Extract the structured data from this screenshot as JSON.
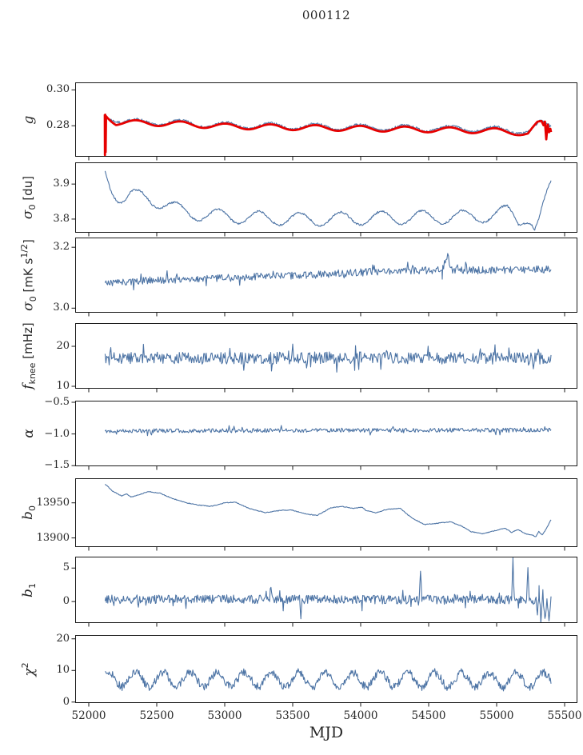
{
  "title": "000112",
  "colors": {
    "line_blue": "#4d74a5",
    "line_red": "#e60000",
    "axis": "#1a1a1a",
    "text": "#262626",
    "background": "#ffffff"
  },
  "chart_data": {
    "type": "line",
    "title": "000112",
    "xlabel": "MJD",
    "legend": "none",
    "grid": false,
    "xlim": [
      51900,
      55594
    ],
    "xticks": [
      {
        "v": 52000,
        "label": "52000"
      },
      {
        "v": 52500,
        "label": "52500"
      },
      {
        "v": 53000,
        "label": "53000"
      },
      {
        "v": 53500,
        "label": "53500"
      },
      {
        "v": 54000,
        "label": "54000"
      },
      {
        "v": 54500,
        "label": "54500"
      },
      {
        "v": 55000,
        "label": "55000"
      },
      {
        "v": 55500,
        "label": "55500"
      }
    ],
    "panels": [
      {
        "id": "g",
        "ylabel_parts": [
          {
            "t": "g",
            "i": 1
          }
        ],
        "ylim": [
          0.2627,
          0.3042
        ],
        "yticks": [
          {
            "v": 0.3,
            "label": "0.30"
          },
          {
            "v": 0.28,
            "label": "0.28"
          }
        ],
        "series": [
          {
            "name": "gain-raw",
            "color": "blue",
            "width": 1.1,
            "step": 5,
            "seed": 7,
            "noise": 0.00065,
            "osc": {
              "period": 330,
              "amp": 0.0016,
              "phase": 3.5
            },
            "points": [
              [
                52120,
                0.2862
              ],
              [
                52250,
                0.2822
              ],
              [
                52600,
                0.2818
              ],
              [
                53000,
                0.2802
              ],
              [
                53400,
                0.2798
              ],
              [
                53800,
                0.2794
              ],
              [
                54200,
                0.2789
              ],
              [
                54600,
                0.2785
              ],
              [
                55000,
                0.2779
              ],
              [
                55150,
                0.2773
              ],
              [
                55250,
                0.277
              ],
              [
                55330,
                0.2818
              ],
              [
                55400,
                0.2792
              ]
            ]
          },
          {
            "name": "gain-smoothed",
            "color": "red",
            "width": 2.8,
            "step": 8,
            "seed": 1,
            "noise": 0,
            "osc": {
              "period": 330,
              "amp": 0.0015,
              "phase": 3.5
            },
            "points": [
              [
                52118,
                0.2868
              ],
              [
                52119,
                0.2642
              ],
              [
                52121,
                0.2868
              ],
              [
                52124,
                0.266
              ],
              [
                52127,
                0.286
              ],
              [
                52200,
                0.2818
              ],
              [
                52600,
                0.2812
              ],
              [
                53000,
                0.2797
              ],
              [
                53400,
                0.2792
              ],
              [
                53800,
                0.2787
              ],
              [
                54200,
                0.2782
              ],
              [
                54600,
                0.2777
              ],
              [
                55000,
                0.2771
              ],
              [
                55150,
                0.2763
              ],
              [
                55230,
                0.2758
              ],
              [
                55300,
                0.2808
              ],
              [
                55330,
                0.2812
              ],
              [
                55345,
                0.279
              ],
              [
                55355,
                0.2812
              ],
              [
                55365,
                0.2715
              ],
              [
                55375,
                0.28
              ],
              [
                55385,
                0.276
              ],
              [
                55395,
                0.2782
              ],
              [
                55400,
                0.2765
              ]
            ]
          }
        ]
      },
      {
        "id": "sigma0-du",
        "ylabel_parts": [
          {
            "t": "σ",
            "i": 1
          },
          {
            "t": "0",
            "sub": 1
          },
          {
            "t": " [du]",
            "u": 1
          }
        ],
        "ylim": [
          3.761,
          3.962
        ],
        "yticks": [
          {
            "v": 3.9,
            "label": "3.9"
          },
          {
            "v": 3.8,
            "label": "3.8"
          }
        ],
        "series": [
          {
            "name": "sigma0-du",
            "color": "blue",
            "width": 1.1,
            "step": 5,
            "seed": 21,
            "noise": 0.0028,
            "osc": {
              "period": 300,
              "amp": 0.019,
              "phase": 3.0
            },
            "points": [
              [
                52120,
                3.935
              ],
              [
                52160,
                3.895
              ],
              [
                52210,
                3.868
              ],
              [
                52260,
                3.856
              ],
              [
                52310,
                3.866
              ],
              [
                52400,
                3.864
              ],
              [
                52550,
                3.845
              ],
              [
                52700,
                3.82
              ],
              [
                52900,
                3.81
              ],
              [
                53200,
                3.804
              ],
              [
                53600,
                3.799
              ],
              [
                54000,
                3.802
              ],
              [
                54400,
                3.805
              ],
              [
                54800,
                3.806
              ],
              [
                55000,
                3.812
              ],
              [
                55080,
                3.822
              ],
              [
                55120,
                3.812
              ],
              [
                55160,
                3.796
              ],
              [
                55210,
                3.808
              ],
              [
                55250,
                3.798
              ],
              [
                55280,
                3.768
              ],
              [
                55310,
                3.79
              ],
              [
                55350,
                3.84
              ],
              [
                55400,
                3.9
              ]
            ]
          }
        ]
      },
      {
        "id": "sigma0-mK",
        "ylabel_parts": [
          {
            "t": "σ",
            "i": 1
          },
          {
            "t": "0",
            "sub": 1
          },
          {
            "t": " [mK s",
            "u": 1
          },
          {
            "t": "1/2",
            "sup": 1
          },
          {
            "t": "]",
            "u": 1
          }
        ],
        "ylim": [
          2.985,
          3.232
        ],
        "yticks": [
          {
            "v": 3.2,
            "label": "3.2"
          },
          {
            "v": 3.0,
            "label": "3.0"
          }
        ],
        "series": [
          {
            "name": "sigma0-mK",
            "color": "blue",
            "width": 1.1,
            "step": 6,
            "seed": 33,
            "noise": 0.012,
            "spiky": 1,
            "points": [
              [
                52120,
                3.082
              ],
              [
                52400,
                3.09
              ],
              [
                52800,
                3.096
              ],
              [
                53200,
                3.102
              ],
              [
                53600,
                3.108
              ],
              [
                54000,
                3.118
              ],
              [
                54300,
                3.122
              ],
              [
                54600,
                3.126
              ],
              [
                54640,
                3.18
              ],
              [
                54660,
                3.126
              ],
              [
                54900,
                3.124
              ],
              [
                55200,
                3.126
              ],
              [
                55400,
                3.128
              ]
            ]
          }
        ]
      },
      {
        "id": "fknee",
        "ylabel_parts": [
          {
            "t": "f",
            "i": 1
          },
          {
            "t": "knee",
            "sub": 1
          },
          {
            "t": " [mHz]",
            "u": 1
          }
        ],
        "ylim": [
          9.4,
          25.8
        ],
        "yticks": [
          {
            "v": 20,
            "label": "20"
          },
          {
            "v": 10,
            "label": "10"
          }
        ],
        "series": [
          {
            "name": "fknee",
            "color": "blue",
            "width": 1.1,
            "step": 6,
            "seed": 44,
            "noise": 1.5,
            "spiky": 1,
            "points": [
              [
                52120,
                17.1
              ],
              [
                53000,
                17.0
              ],
              [
                54000,
                17.2
              ],
              [
                55400,
                16.9
              ]
            ]
          }
        ]
      },
      {
        "id": "alpha",
        "ylabel_parts": [
          {
            "t": "α",
            "i": 1
          }
        ],
        "ylim": [
          -1.51,
          -0.475
        ],
        "yticks": [
          {
            "v": -0.5,
            "label": "−0.5"
          },
          {
            "v": -1.0,
            "label": "−1.0"
          },
          {
            "v": -1.5,
            "label": "−1.5"
          }
        ],
        "series": [
          {
            "name": "alpha",
            "color": "blue",
            "width": 1.1,
            "step": 6,
            "seed": 55,
            "noise": 0.032,
            "spiky": 1,
            "points": [
              [
                52120,
                -0.952
              ],
              [
                53500,
                -0.945
              ],
              [
                55400,
                -0.938
              ]
            ]
          }
        ]
      },
      {
        "id": "b0",
        "ylabel_parts": [
          {
            "t": "b",
            "i": 1
          },
          {
            "t": "0",
            "sub": 1
          }
        ],
        "ylim": [
          13887,
          13985
        ],
        "yticks": [
          {
            "v": 13950,
            "label": "13950"
          },
          {
            "v": 13900,
            "label": "13900"
          }
        ],
        "series": [
          {
            "name": "b0",
            "color": "blue",
            "width": 1.1,
            "step": 5,
            "seed": 66,
            "noise": 0.5,
            "points": [
              [
                52120,
                13977
              ],
              [
                52180,
                13966
              ],
              [
                52240,
                13960
              ],
              [
                52280,
                13963
              ],
              [
                52310,
                13958
              ],
              [
                52360,
                13961
              ],
              [
                52440,
                13966
              ],
              [
                52520,
                13964
              ],
              [
                52620,
                13956
              ],
              [
                52720,
                13950
              ],
              [
                52800,
                13947
              ],
              [
                52900,
                13945
              ],
              [
                53000,
                13950
              ],
              [
                53080,
                13951
              ],
              [
                53180,
                13942
              ],
              [
                53300,
                13936
              ],
              [
                53400,
                13939
              ],
              [
                53490,
                13940
              ],
              [
                53600,
                13934
              ],
              [
                53680,
                13932
              ],
              [
                53780,
                13943
              ],
              [
                53860,
                13945
              ],
              [
                53950,
                13942
              ],
              [
                54010,
                13944
              ],
              [
                54040,
                13939
              ],
              [
                54110,
                13936
              ],
              [
                54200,
                13941
              ],
              [
                54290,
                13942
              ],
              [
                54380,
                13928
              ],
              [
                54470,
                13919
              ],
              [
                54570,
                13921
              ],
              [
                54660,
                13923
              ],
              [
                54740,
                13917
              ],
              [
                54810,
                13909
              ],
              [
                54900,
                13906
              ],
              [
                55000,
                13911
              ],
              [
                55060,
                13914
              ],
              [
                55110,
                13908
              ],
              [
                55160,
                13912
              ],
              [
                55210,
                13906
              ],
              [
                55260,
                13904
              ],
              [
                55290,
                13902
              ],
              [
                55310,
                13909
              ],
              [
                55335,
                13904
              ],
              [
                55365,
                13913
              ],
              [
                55400,
                13926
              ]
            ]
          }
        ]
      },
      {
        "id": "b1",
        "ylabel_parts": [
          {
            "t": "b",
            "i": 1
          },
          {
            "t": "1",
            "sub": 1
          }
        ],
        "ylim": [
          -3.2,
          6.7
        ],
        "yticks": [
          {
            "v": 5,
            "label": "5"
          },
          {
            "v": 0,
            "label": "0"
          }
        ],
        "series": [
          {
            "name": "b1",
            "color": "blue",
            "width": 1.1,
            "step": 5,
            "seed": 77,
            "noise": 0.65,
            "spiky": 1,
            "points": [
              [
                52120,
                0.35
              ],
              [
                53330,
                0.35
              ],
              [
                53340,
                2.6
              ],
              [
                53350,
                0.3
              ],
              [
                53550,
                0.3
              ],
              [
                53560,
                -2.4
              ],
              [
                53570,
                0.3
              ],
              [
                54430,
                0.3
              ],
              [
                54440,
                4.6
              ],
              [
                54450,
                0.3
              ],
              [
                55110,
                0.3
              ],
              [
                55120,
                6.6
              ],
              [
                55130,
                0.2
              ],
              [
                55220,
                0.2
              ],
              [
                55230,
                4.8
              ],
              [
                55240,
                0.2
              ],
              [
                55290,
                0.2
              ],
              [
                55300,
                -2.6
              ],
              [
                55312,
                1.8
              ],
              [
                55325,
                -2.9
              ],
              [
                55340,
                1.2
              ],
              [
                55355,
                -2.8
              ],
              [
                55370,
                0.8
              ],
              [
                55385,
                -2.5
              ],
              [
                55400,
                0.3
              ]
            ]
          }
        ]
      },
      {
        "id": "chi2",
        "ylabel_parts": [
          {
            "t": "χ",
            "i": 1
          },
          {
            "t": "2",
            "sup": 1
          }
        ],
        "ylim": [
          -0.3,
          21.2
        ],
        "yticks": [
          {
            "v": 20,
            "label": "20"
          },
          {
            "v": 10,
            "label": "10"
          },
          {
            "v": 0,
            "label": "0"
          }
        ],
        "series": [
          {
            "name": "chi2",
            "color": "blue",
            "width": 1.1,
            "step": 5,
            "seed": 88,
            "noise": 1.25,
            "osc": {
              "period": 200,
              "amp": 2.3,
              "phase": 0.8
            },
            "points": [
              [
                52120,
                7.2
              ],
              [
                55400,
                7.0
              ]
            ]
          }
        ]
      }
    ]
  }
}
